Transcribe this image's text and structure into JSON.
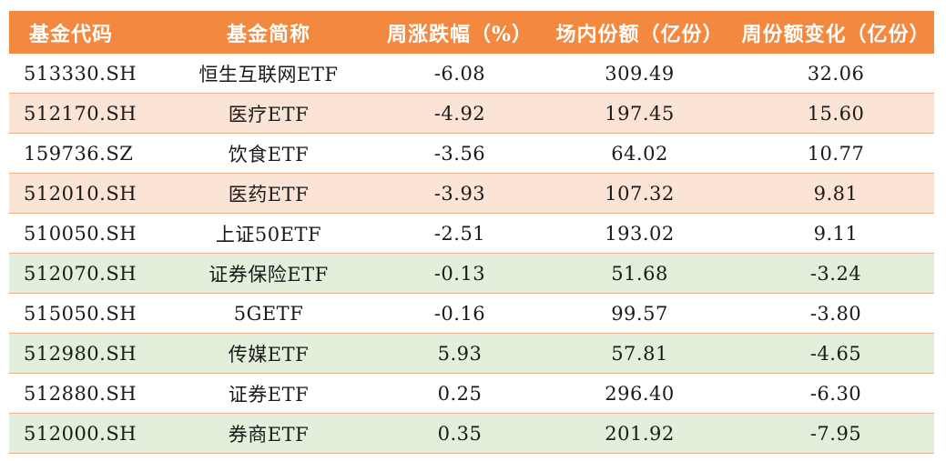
{
  "colors": {
    "header_bg": "#f2893f",
    "row_white": "#ffffff",
    "row_pink": "#fbe3d6",
    "row_green": "#e2efda",
    "divider": "#e8b08a"
  },
  "chart_data": {
    "type": "table",
    "columns": [
      "基金代码",
      "基金简称",
      "周涨跌幅（%）",
      "场内份额（亿份）",
      "周份额变化（亿份）"
    ],
    "rows": [
      {
        "code": "513330.SH",
        "name": "恒生互联网ETF",
        "weekly_change_pct": "-6.08",
        "shares": "309.49",
        "shares_change": "32.06",
        "shade": "white"
      },
      {
        "code": "512170.SH",
        "name": "医疗ETF",
        "weekly_change_pct": "-4.92",
        "shares": "197.45",
        "shares_change": "15.60",
        "shade": "pink"
      },
      {
        "code": "159736.SZ",
        "name": "饮食ETF",
        "weekly_change_pct": "-3.56",
        "shares": "64.02",
        "shares_change": "10.77",
        "shade": "white"
      },
      {
        "code": "512010.SH",
        "name": "医药ETF",
        "weekly_change_pct": "-3.93",
        "shares": "107.32",
        "shares_change": "9.81",
        "shade": "pink"
      },
      {
        "code": "510050.SH",
        "name": "上证50ETF",
        "weekly_change_pct": "-2.51",
        "shares": "193.02",
        "shares_change": "9.11",
        "shade": "white"
      },
      {
        "code": "512070.SH",
        "name": "证券保险ETF",
        "weekly_change_pct": "-0.13",
        "shares": "51.68",
        "shares_change": "-3.24",
        "shade": "green"
      },
      {
        "code": "515050.SH",
        "name": "5GETF",
        "weekly_change_pct": "-0.16",
        "shares": "99.57",
        "shares_change": "-3.80",
        "shade": "white"
      },
      {
        "code": "512980.SH",
        "name": "传媒ETF",
        "weekly_change_pct": "5.93",
        "shares": "57.81",
        "shares_change": "-4.65",
        "shade": "green"
      },
      {
        "code": "512880.SH",
        "name": "证券ETF",
        "weekly_change_pct": "0.25",
        "shares": "296.40",
        "shares_change": "-6.30",
        "shade": "white"
      },
      {
        "code": "512000.SH",
        "name": "券商ETF",
        "weekly_change_pct": "0.35",
        "shares": "201.92",
        "shares_change": "-7.95",
        "shade": "green"
      }
    ]
  }
}
